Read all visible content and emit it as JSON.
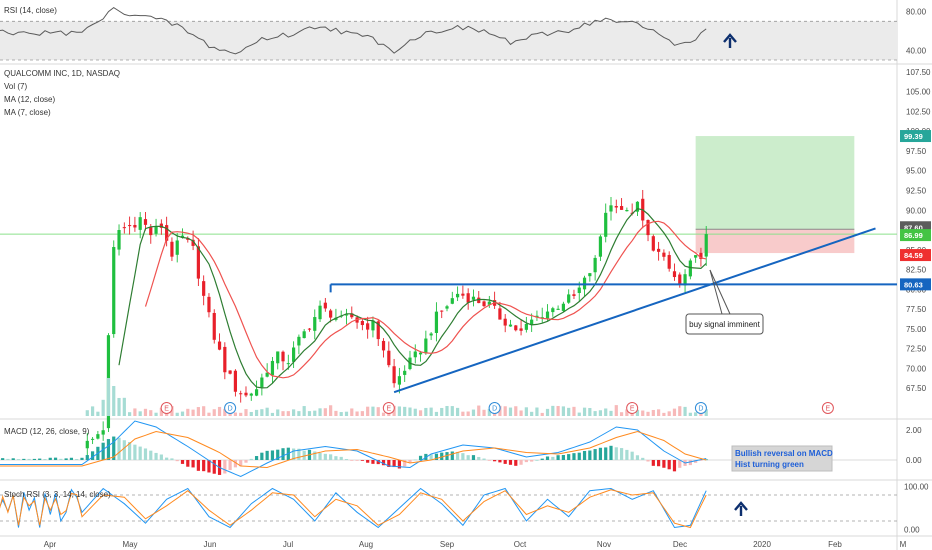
{
  "chart_data": {
    "type": "candlestick",
    "symbol_title": "QUALCOMM INC, 1D, NASDAQ",
    "indicator_labels": [
      "Vol (7)",
      "MA (12, close)",
      "MA (7, close)"
    ],
    "price_axis": {
      "ticks": [
        "107.50",
        "105.00",
        "102.50",
        "100.00",
        "97.50",
        "95.00",
        "92.50",
        "90.00",
        "87.50",
        "85.00",
        "82.50",
        "80.00",
        "77.50",
        "75.00",
        "72.50",
        "70.00",
        "67.50"
      ],
      "range": [
        65.5,
        108.5
      ]
    },
    "price_badges": [
      {
        "label": "99.39",
        "value": 99.39,
        "color": "#26a69a"
      },
      {
        "label": "87.60",
        "value": 87.6,
        "color": "#5c5c5c"
      },
      {
        "label": "86.99",
        "value": 86.99,
        "color": "#43c443"
      },
      {
        "label": "84.59",
        "value": 84.59,
        "color": "#ef2f2f"
      },
      {
        "label": "80.63",
        "value": 80.63,
        "color": "#1565c0"
      }
    ],
    "x_axis_labels": [
      "Apr",
      "May",
      "Jun",
      "Jul",
      "Aug",
      "Sep",
      "Oct",
      "Nov",
      "Dec",
      "2020",
      "Feb",
      "M"
    ],
    "price_path": [
      {
        "d": 0,
        "p": 60.0
      },
      {
        "d": 2,
        "p": 61.0
      },
      {
        "d": 4,
        "p": 62.5
      },
      {
        "d": 6,
        "p": 85.0
      },
      {
        "d": 7,
        "p": 87.5
      },
      {
        "d": 9,
        "p": 88.0
      },
      {
        "d": 11,
        "p": 89.0
      },
      {
        "d": 13,
        "p": 87.0
      },
      {
        "d": 15,
        "p": 88.0
      },
      {
        "d": 17,
        "p": 84.5
      },
      {
        "d": 19,
        "p": 86.5
      },
      {
        "d": 21,
        "p": 85.0
      },
      {
        "d": 23,
        "p": 79.0
      },
      {
        "d": 25,
        "p": 74.0
      },
      {
        "d": 27,
        "p": 70.0
      },
      {
        "d": 29,
        "p": 67.5
      },
      {
        "d": 31,
        "p": 66.5
      },
      {
        "d": 33,
        "p": 67.5
      },
      {
        "d": 35,
        "p": 70.0
      },
      {
        "d": 37,
        "p": 71.5
      },
      {
        "d": 39,
        "p": 71.0
      },
      {
        "d": 41,
        "p": 73.5
      },
      {
        "d": 43,
        "p": 75.5
      },
      {
        "d": 45,
        "p": 77.5
      },
      {
        "d": 47,
        "p": 77.0
      },
      {
        "d": 49,
        "p": 76.0
      },
      {
        "d": 51,
        "p": 76.5
      },
      {
        "d": 53,
        "p": 75.5
      },
      {
        "d": 55,
        "p": 75.5
      },
      {
        "d": 57,
        "p": 72.5
      },
      {
        "d": 59,
        "p": 68.0
      },
      {
        "d": 61,
        "p": 70.0
      },
      {
        "d": 63,
        "p": 71.5
      },
      {
        "d": 65,
        "p": 73.5
      },
      {
        "d": 67,
        "p": 76.5
      },
      {
        "d": 69,
        "p": 78.0
      },
      {
        "d": 71,
        "p": 79.5
      },
      {
        "d": 73,
        "p": 79.0
      },
      {
        "d": 75,
        "p": 78.5
      },
      {
        "d": 77,
        "p": 78.0
      },
      {
        "d": 79,
        "p": 76.5
      },
      {
        "d": 81,
        "p": 75.5
      },
      {
        "d": 83,
        "p": 74.5
      },
      {
        "d": 85,
        "p": 76.0
      },
      {
        "d": 87,
        "p": 77.0
      },
      {
        "d": 89,
        "p": 77.5
      },
      {
        "d": 91,
        "p": 78.5
      },
      {
        "d": 93,
        "p": 79.0
      },
      {
        "d": 95,
        "p": 81.0
      },
      {
        "d": 97,
        "p": 83.5
      },
      {
        "d": 99,
        "p": 90.0
      },
      {
        "d": 101,
        "p": 91.0
      },
      {
        "d": 103,
        "p": 89.5
      },
      {
        "d": 105,
        "p": 90.5
      },
      {
        "d": 107,
        "p": 86.5
      },
      {
        "d": 109,
        "p": 84.5
      },
      {
        "d": 111,
        "p": 82.5
      },
      {
        "d": 113,
        "p": 80.5
      },
      {
        "d": 115,
        "p": 83.0
      },
      {
        "d": 117,
        "p": 84.5
      },
      {
        "d": 118,
        "p": 86.99
      }
    ],
    "moving_averages": [
      {
        "name": "MA (7, close)",
        "color": "#2e7d32",
        "period": 7
      },
      {
        "name": "MA (12, close)",
        "color": "#ef5350",
        "period": 12
      }
    ],
    "overlays": {
      "resistance_level": {
        "value": 80.63,
        "start_day": 47,
        "color": "#1565c0"
      },
      "trend_line": {
        "points": [
          [
            59,
            67.0
          ],
          [
            150,
            87.7
          ]
        ],
        "color": "#1565c0"
      },
      "last_price_line": {
        "value": 86.99,
        "color": "#8be08b"
      },
      "target_zone": {
        "from": 87.6,
        "to": 99.39,
        "start_day": 116,
        "end_day": 146,
        "color": "#c9ecc9"
      },
      "stop_zone": {
        "from": 84.59,
        "to": 87.6,
        "start_day": 116,
        "end_day": 146,
        "color": "#f8c8c8"
      }
    },
    "annotations": [
      {
        "text": "buy signal imminent"
      }
    ],
    "event_markers": [
      {
        "label": "E",
        "day": 16,
        "color": "#e0565b"
      },
      {
        "label": "D",
        "day": 28,
        "color": "#2f8cd8"
      },
      {
        "label": "E",
        "day": 58,
        "color": "#e0565b"
      },
      {
        "label": "D",
        "day": 78,
        "color": "#2f8cd8"
      },
      {
        "label": "E",
        "day": 104,
        "color": "#e0565b"
      },
      {
        "label": "D",
        "day": 117,
        "color": "#2f8cd8"
      },
      {
        "label": "E",
        "day": 141,
        "color": "#e0565b"
      }
    ],
    "rsi": {
      "label": "RSI (14, close)",
      "ticks": [
        "80.00",
        "40.00"
      ],
      "range": [
        30,
        90
      ],
      "band": [
        30,
        70
      ],
      "path": [
        {
          "d": 0,
          "v": 58
        },
        {
          "d": 6,
          "v": 82
        },
        {
          "d": 12,
          "v": 75
        },
        {
          "d": 18,
          "v": 66
        },
        {
          "d": 24,
          "v": 45
        },
        {
          "d": 29,
          "v": 36
        },
        {
          "d": 34,
          "v": 52
        },
        {
          "d": 40,
          "v": 57
        },
        {
          "d": 45,
          "v": 66
        },
        {
          "d": 50,
          "v": 58
        },
        {
          "d": 55,
          "v": 52
        },
        {
          "d": 59,
          "v": 40
        },
        {
          "d": 64,
          "v": 56
        },
        {
          "d": 70,
          "v": 64
        },
        {
          "d": 76,
          "v": 60
        },
        {
          "d": 81,
          "v": 48
        },
        {
          "d": 86,
          "v": 55
        },
        {
          "d": 92,
          "v": 61
        },
        {
          "d": 98,
          "v": 72
        },
        {
          "d": 104,
          "v": 68
        },
        {
          "d": 108,
          "v": 60
        },
        {
          "d": 113,
          "v": 45
        },
        {
          "d": 116,
          "v": 53
        },
        {
          "d": 118,
          "v": 60
        }
      ]
    },
    "macd": {
      "label": "MACD (12, 26, close, 9)",
      "ticks": [
        "2.00",
        "0.00"
      ],
      "range": [
        -1.2,
        2.6
      ],
      "histogram": [
        {
          "d": 0,
          "v": 0.1
        },
        {
          "d": 6,
          "v": 1.6
        },
        {
          "d": 10,
          "v": 1.0
        },
        {
          "d": 14,
          "v": 0.5
        },
        {
          "d": 18,
          "v": -0.1
        },
        {
          "d": 22,
          "v": -0.7
        },
        {
          "d": 26,
          "v": -1.0
        },
        {
          "d": 30,
          "v": -0.4
        },
        {
          "d": 34,
          "v": 0.5
        },
        {
          "d": 38,
          "v": 0.8
        },
        {
          "d": 44,
          "v": 0.6
        },
        {
          "d": 50,
          "v": 0.1
        },
        {
          "d": 56,
          "v": -0.3
        },
        {
          "d": 60,
          "v": -0.6
        },
        {
          "d": 64,
          "v": 0.3
        },
        {
          "d": 70,
          "v": 0.6
        },
        {
          "d": 76,
          "v": 0.1
        },
        {
          "d": 82,
          "v": -0.4
        },
        {
          "d": 88,
          "v": 0.2
        },
        {
          "d": 94,
          "v": 0.5
        },
        {
          "d": 100,
          "v": 0.9
        },
        {
          "d": 104,
          "v": 0.6
        },
        {
          "d": 108,
          "v": -0.4
        },
        {
          "d": 112,
          "v": -0.7
        },
        {
          "d": 116,
          "v": -0.2
        },
        {
          "d": 118,
          "v": 0.1
        }
      ],
      "macd_line": [
        {
          "d": 0,
          "v": -0.3
        },
        {
          "d": 6,
          "v": 1.2
        },
        {
          "d": 10,
          "v": 2.6
        },
        {
          "d": 14,
          "v": 2.2
        },
        {
          "d": 20,
          "v": 0.9
        },
        {
          "d": 26,
          "v": -0.5
        },
        {
          "d": 30,
          "v": -1.1
        },
        {
          "d": 35,
          "v": -0.2
        },
        {
          "d": 40,
          "v": 0.6
        },
        {
          "d": 46,
          "v": 0.9
        },
        {
          "d": 52,
          "v": 0.6
        },
        {
          "d": 58,
          "v": -0.4
        },
        {
          "d": 62,
          "v": -0.5
        },
        {
          "d": 66,
          "v": 0.4
        },
        {
          "d": 72,
          "v": 1.0
        },
        {
          "d": 78,
          "v": 0.8
        },
        {
          "d": 84,
          "v": 0.2
        },
        {
          "d": 90,
          "v": 0.5
        },
        {
          "d": 96,
          "v": 1.2
        },
        {
          "d": 101,
          "v": 2.2
        },
        {
          "d": 105,
          "v": 2.0
        },
        {
          "d": 110,
          "v": 0.6
        },
        {
          "d": 114,
          "v": -0.2
        },
        {
          "d": 118,
          "v": 0.1
        }
      ],
      "signal_line": [
        {
          "d": 0,
          "v": -0.4
        },
        {
          "d": 6,
          "v": 0.2
        },
        {
          "d": 10,
          "v": 1.4
        },
        {
          "d": 14,
          "v": 1.9
        },
        {
          "d": 20,
          "v": 1.5
        },
        {
          "d": 26,
          "v": 0.5
        },
        {
          "d": 30,
          "v": -0.4
        },
        {
          "d": 35,
          "v": -0.5
        },
        {
          "d": 40,
          "v": 0.1
        },
        {
          "d": 46,
          "v": 0.6
        },
        {
          "d": 52,
          "v": 0.7
        },
        {
          "d": 58,
          "v": 0.2
        },
        {
          "d": 62,
          "v": -0.2
        },
        {
          "d": 66,
          "v": 0.0
        },
        {
          "d": 72,
          "v": 0.6
        },
        {
          "d": 78,
          "v": 0.8
        },
        {
          "d": 84,
          "v": 0.5
        },
        {
          "d": 90,
          "v": 0.4
        },
        {
          "d": 96,
          "v": 0.8
        },
        {
          "d": 101,
          "v": 1.5
        },
        {
          "d": 105,
          "v": 1.9
        },
        {
          "d": 110,
          "v": 1.3
        },
        {
          "d": 114,
          "v": 0.4
        },
        {
          "d": 118,
          "v": 0.0
        }
      ],
      "note_lines": [
        "Bullish reversal on MACD",
        "Hist turning green"
      ]
    },
    "stoch_rsi": {
      "label": "Stoch RSI (3, 3, 14, 14, close)",
      "ticks": [
        "100.00",
        "0.00"
      ],
      "range": [
        -10,
        110
      ],
      "band": [
        20,
        80
      ],
      "k_line": [
        {
          "d": 0,
          "v": 40
        },
        {
          "d": 4,
          "v": 95
        },
        {
          "d": 8,
          "v": 60
        },
        {
          "d": 12,
          "v": 15
        },
        {
          "d": 16,
          "v": 70
        },
        {
          "d": 20,
          "v": 95
        },
        {
          "d": 24,
          "v": 30
        },
        {
          "d": 28,
          "v": 5
        },
        {
          "d": 32,
          "v": 60
        },
        {
          "d": 36,
          "v": 95
        },
        {
          "d": 40,
          "v": 70
        },
        {
          "d": 44,
          "v": 20
        },
        {
          "d": 48,
          "v": 85
        },
        {
          "d": 52,
          "v": 40
        },
        {
          "d": 56,
          "v": 5
        },
        {
          "d": 60,
          "v": 50
        },
        {
          "d": 64,
          "v": 95
        },
        {
          "d": 68,
          "v": 60
        },
        {
          "d": 72,
          "v": 10
        },
        {
          "d": 76,
          "v": 80
        },
        {
          "d": 80,
          "v": 95
        },
        {
          "d": 84,
          "v": 20
        },
        {
          "d": 88,
          "v": 70
        },
        {
          "d": 92,
          "v": 30
        },
        {
          "d": 96,
          "v": 90
        },
        {
          "d": 100,
          "v": 95
        },
        {
          "d": 104,
          "v": 70
        },
        {
          "d": 108,
          "v": 90
        },
        {
          "d": 112,
          "v": 5
        },
        {
          "d": 115,
          "v": 10
        },
        {
          "d": 118,
          "v": 90
        }
      ],
      "d_line": [
        {
          "d": 0,
          "v": 30
        },
        {
          "d": 4,
          "v": 80
        },
        {
          "d": 8,
          "v": 75
        },
        {
          "d": 12,
          "v": 25
        },
        {
          "d": 16,
          "v": 55
        },
        {
          "d": 20,
          "v": 90
        },
        {
          "d": 24,
          "v": 45
        },
        {
          "d": 28,
          "v": 10
        },
        {
          "d": 32,
          "v": 45
        },
        {
          "d": 36,
          "v": 85
        },
        {
          "d": 40,
          "v": 80
        },
        {
          "d": 44,
          "v": 30
        },
        {
          "d": 48,
          "v": 70
        },
        {
          "d": 52,
          "v": 55
        },
        {
          "d": 56,
          "v": 10
        },
        {
          "d": 60,
          "v": 35
        },
        {
          "d": 64,
          "v": 85
        },
        {
          "d": 68,
          "v": 70
        },
        {
          "d": 72,
          "v": 20
        },
        {
          "d": 76,
          "v": 65
        },
        {
          "d": 80,
          "v": 90
        },
        {
          "d": 84,
          "v": 35
        },
        {
          "d": 88,
          "v": 55
        },
        {
          "d": 92,
          "v": 40
        },
        {
          "d": 96,
          "v": 75
        },
        {
          "d": 100,
          "v": 92
        },
        {
          "d": 104,
          "v": 80
        },
        {
          "d": 108,
          "v": 85
        },
        {
          "d": 112,
          "v": 15
        },
        {
          "d": 115,
          "v": 5
        },
        {
          "d": 118,
          "v": 80
        }
      ]
    },
    "colors": {
      "up": "#26a69a",
      "down": "#ef5350",
      "up_vivid": "#1fbf3f",
      "down_vivid": "#e8202a",
      "up_light": "#a6dcd4",
      "down_light": "#f7b9b9",
      "macd_line": "#2196f3",
      "signal_line": "#ff8a1f",
      "stoch_k": "#2196f3",
      "stoch_d": "#ff8a1f",
      "rsi_line": "#5a5a5a",
      "rsi_band": "#ebebeb",
      "arrow": "#0d2f6e"
    }
  }
}
